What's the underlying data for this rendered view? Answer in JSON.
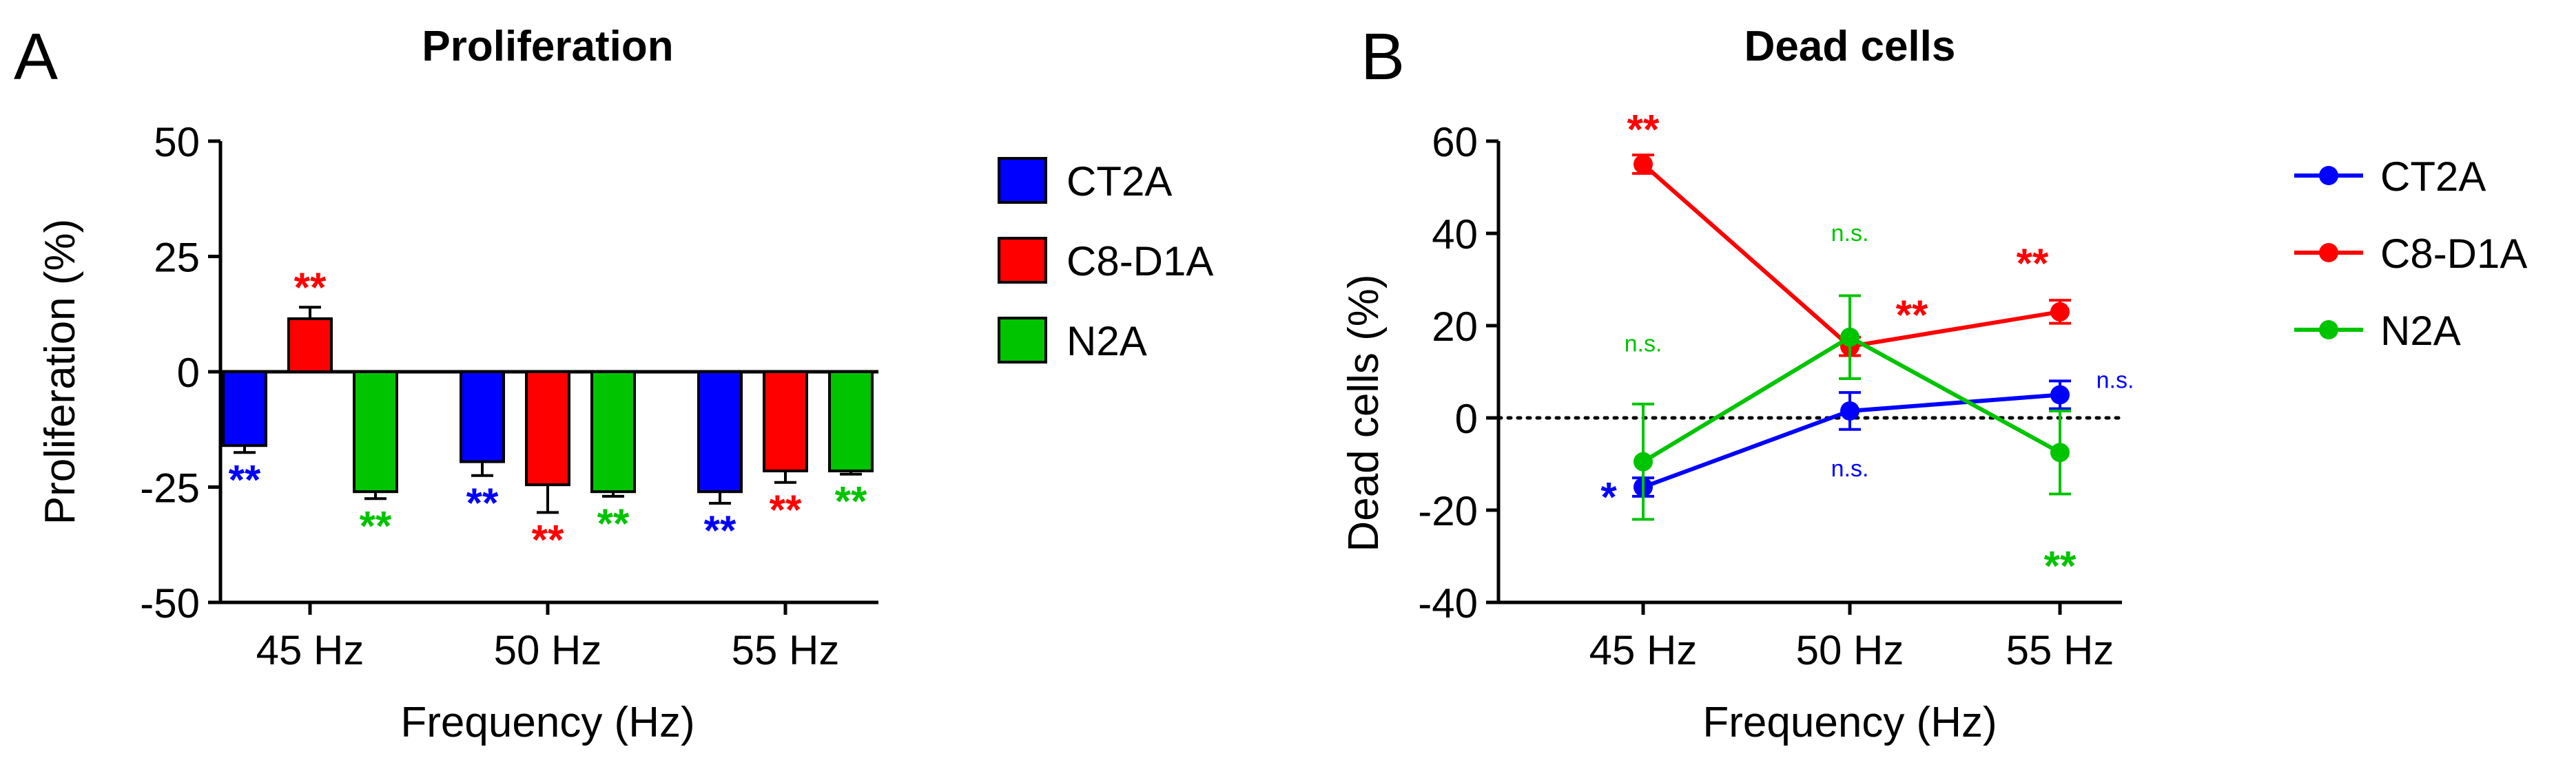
{
  "chart_data": [
    {
      "panel_label": "A",
      "type": "bar",
      "title": "Proliferation",
      "xlabel": "Frequency (Hz)",
      "ylabel": "Proliferation (%)",
      "ylim": [
        -50,
        50
      ],
      "yticks": [
        50,
        25,
        0,
        -25,
        -50
      ],
      "ytick_labels": [
        "50",
        "25",
        "0",
        "-25",
        "-50"
      ],
      "categories": [
        "45 Hz",
        "50 Hz",
        "55 Hz"
      ],
      "legend_position": "right",
      "series": [
        {
          "name": "CT2A",
          "color": "#0000ff",
          "values": [
            -16,
            -19.5,
            -26
          ],
          "errors": [
            1.5,
            3,
            2.5
          ],
          "significance": [
            "**",
            "**",
            "**"
          ]
        },
        {
          "name": "C8-D1A",
          "color": "#ff0000",
          "values": [
            11.5,
            -24.5,
            -21.5
          ],
          "errors": [
            2.5,
            6,
            2.5
          ],
          "significance": [
            "**",
            "**",
            "**"
          ]
        },
        {
          "name": "N2A",
          "color": "#00c400",
          "values": [
            -26,
            -26,
            -21.5
          ],
          "errors": [
            1.5,
            1,
            0.7
          ],
          "significance": [
            "**",
            "**",
            "**"
          ]
        }
      ]
    },
    {
      "panel_label": "B",
      "type": "line",
      "title": "Dead cells",
      "xlabel": "Frequency (Hz)",
      "ylabel": "Dead cells (%)",
      "ylim": [
        -40,
        60
      ],
      "yticks": [
        60,
        40,
        20,
        0,
        -20,
        -40
      ],
      "ytick_labels": [
        "60",
        "40",
        "20",
        "0",
        "-20",
        "-40"
      ],
      "categories": [
        "45 Hz",
        "50 Hz",
        "55 Hz"
      ],
      "zero_line": "dotted",
      "legend_position": "right",
      "series": [
        {
          "name": "CT2A",
          "color": "#0000ff",
          "values": [
            -15,
            1.5,
            5
          ],
          "errors": [
            2,
            4,
            3
          ],
          "significance": [
            "*",
            "n.s.",
            "n.s."
          ]
        },
        {
          "name": "C8-D1A",
          "color": "#ff0000",
          "values": [
            55,
            15.5,
            23
          ],
          "errors": [
            2,
            2,
            2.5
          ],
          "significance": [
            "**",
            "**",
            "**"
          ]
        },
        {
          "name": "N2A",
          "color": "#00c400",
          "values": [
            -9.5,
            17.5,
            -7.5
          ],
          "errors": [
            12.5,
            9,
            9
          ],
          "significance": [
            "n.s.",
            "n.s.",
            "**"
          ]
        }
      ]
    }
  ]
}
